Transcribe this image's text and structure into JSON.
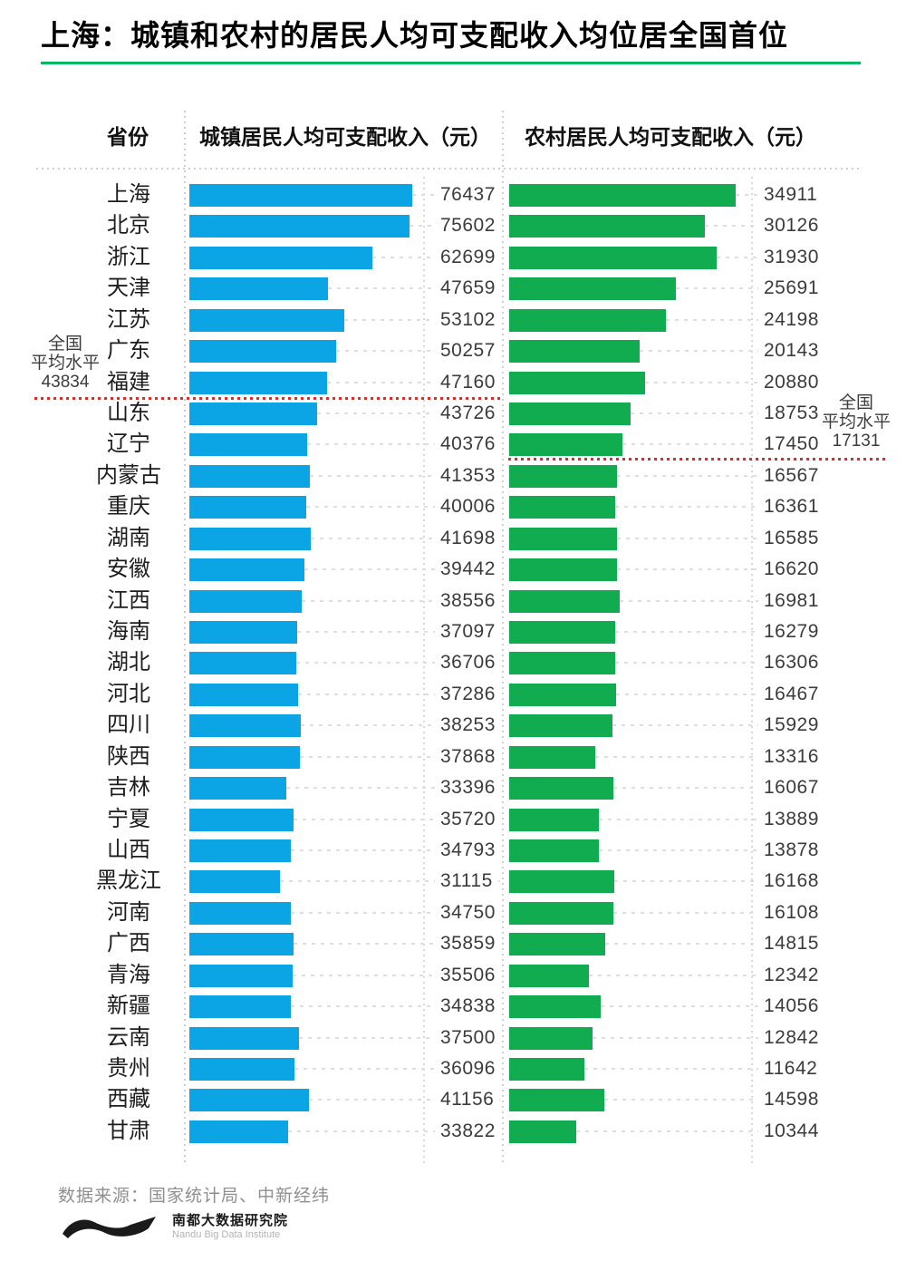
{
  "title": "上海：城镇和农村的居民人均可支配收入均位居全国首位",
  "table_headers": {
    "province": "省份",
    "urban": "城镇居民人均可支配收入（元）",
    "rural": "农村居民人均可支配收入（元）"
  },
  "annotations": {
    "urban_average": {
      "line1": "全国",
      "line2": "平均水平",
      "value": "43834"
    },
    "rural_average": {
      "line1": "全国",
      "line2": "平均水平",
      "value": "17131"
    }
  },
  "footer": {
    "source": "数据来源：国家统计局、中新经纬",
    "logo_cn": "南都大数据研究院",
    "logo_en": "Nandu Big Data Institute"
  },
  "colors": {
    "urban_bar": "#0ba4e4",
    "rural_bar": "#10ac4f",
    "average_line": "#d2322e",
    "title_underline": "#00b964"
  },
  "chart_data": {
    "type": "bar",
    "orientation": "horizontal",
    "title": "上海：城镇和农村的居民人均可支配收入均位居全国首位",
    "categories": [
      "上海",
      "北京",
      "浙江",
      "天津",
      "江苏",
      "广东",
      "福建",
      "山东",
      "辽宁",
      "内蒙古",
      "重庆",
      "湖南",
      "安徽",
      "江西",
      "海南",
      "湖北",
      "河北",
      "四川",
      "陕西",
      "吉林",
      "宁夏",
      "山西",
      "黑龙江",
      "河南",
      "广西",
      "青海",
      "新疆",
      "云南",
      "贵州",
      "西藏",
      "甘肃"
    ],
    "series": [
      {
        "name": "城镇居民人均可支配收入（元）",
        "values": [
          76437,
          75602,
          62699,
          47659,
          53102,
          50257,
          47160,
          43726,
          40376,
          41353,
          40006,
          41698,
          39442,
          38556,
          37097,
          36706,
          37286,
          38253,
          37868,
          33396,
          35720,
          34793,
          31115,
          34750,
          35859,
          35506,
          34838,
          37500,
          36096,
          41156,
          33822
        ]
      },
      {
        "name": "农村居民人均可支配收入（元）",
        "values": [
          34911,
          30126,
          31930,
          25691,
          24198,
          20143,
          20880,
          18753,
          17450,
          16567,
          16361,
          16585,
          16620,
          16981,
          16279,
          16306,
          16467,
          15929,
          13316,
          16067,
          13889,
          13878,
          16168,
          16108,
          14815,
          12342,
          14056,
          12842,
          11642,
          14598,
          10344
        ]
      }
    ],
    "averages": {
      "urban": 43834,
      "rural": 17131
    },
    "legend_position": "none",
    "grid": "dotted-column-separators",
    "value_labels": "right-of-bar"
  }
}
